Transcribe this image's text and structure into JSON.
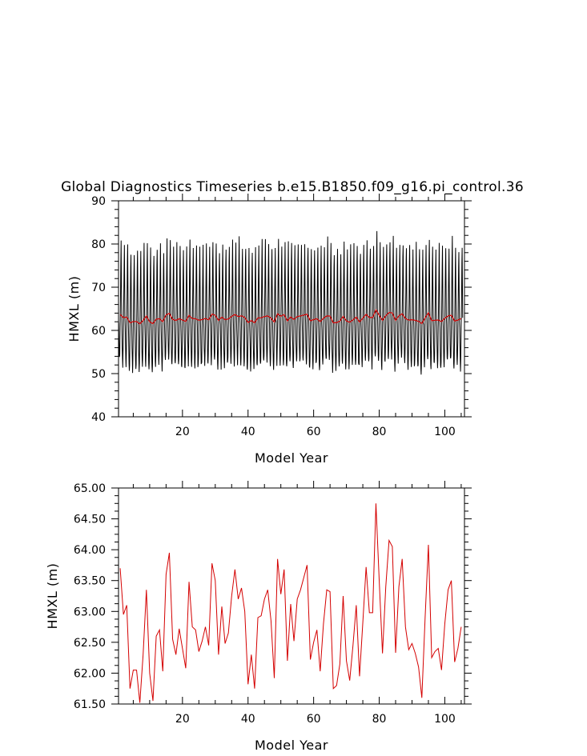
{
  "title": "Global Diagnostics Timeseries b.e15.B1850.f09_g16.pi_control.36",
  "chart_data": [
    {
      "type": "line",
      "panel": "monthly",
      "xlabel": "Model Year",
      "ylabel": "HMXL (m)",
      "xlim": [
        0.5,
        106
      ],
      "ylim": [
        40,
        90
      ],
      "xticks": [
        20,
        40,
        60,
        80,
        100
      ],
      "yticks": [
        40,
        50,
        60,
        70,
        80,
        90
      ],
      "ytick_labels": [
        "40",
        "50",
        "60",
        "70",
        "80",
        "90"
      ],
      "months_per_year": 12,
      "monthly_cycle_offsets": [
        -2.0,
        -6.0,
        -9.5,
        -11.0,
        -9.0,
        -4.5,
        1.0,
        6.0,
        12.5,
        17.0,
        8.0,
        0.5
      ],
      "annual_mean_series_color": "#d40000",
      "monthly_series_color": "#000000"
    },
    {
      "type": "line",
      "panel": "annual",
      "xlabel": "Model Year",
      "ylabel": "HMXL (m)",
      "xlim": [
        0.5,
        106
      ],
      "ylim": [
        61.5,
        65.0
      ],
      "xticks": [
        20,
        40,
        60,
        80,
        100
      ],
      "yticks": [
        61.5,
        62.0,
        62.5,
        63.0,
        63.5,
        64.0,
        64.5,
        65.0
      ],
      "ytick_labels": [
        "61.50",
        "62.00",
        "62.50",
        "63.00",
        "63.50",
        "64.00",
        "64.50",
        "65.00"
      ],
      "series_color": "#d40000",
      "x": [
        1,
        2,
        3,
        4,
        5,
        6,
        7,
        8,
        9,
        10,
        11,
        12,
        13,
        14,
        15,
        16,
        17,
        18,
        19,
        20,
        21,
        22,
        23,
        24,
        25,
        26,
        27,
        28,
        29,
        30,
        31,
        32,
        33,
        34,
        35,
        36,
        37,
        38,
        39,
        40,
        41,
        42,
        43,
        44,
        45,
        46,
        47,
        48,
        49,
        50,
        51,
        52,
        53,
        54,
        55,
        56,
        57,
        58,
        59,
        60,
        61,
        62,
        63,
        64,
        65,
        66,
        67,
        68,
        69,
        70,
        71,
        72,
        73,
        74,
        75,
        76,
        77,
        78,
        79,
        80,
        81,
        82,
        83,
        84,
        85,
        86,
        87,
        88,
        89,
        90,
        91,
        92,
        93,
        94,
        95,
        96,
        97,
        98,
        99,
        100,
        101,
        102,
        103,
        104,
        105
      ],
      "values": [
        63.7,
        62.95,
        63.1,
        61.75,
        62.05,
        62.05,
        61.52,
        62.3,
        63.35,
        62.0,
        61.55,
        62.6,
        62.7,
        62.03,
        63.6,
        63.95,
        62.55,
        62.3,
        62.72,
        62.4,
        62.08,
        63.48,
        62.75,
        62.7,
        62.35,
        62.52,
        62.75,
        62.45,
        63.78,
        63.5,
        62.3,
        63.08,
        62.48,
        62.65,
        63.25,
        63.68,
        63.2,
        63.38,
        63.0,
        61.82,
        62.3,
        61.75,
        62.9,
        62.93,
        63.2,
        63.35,
        62.85,
        61.92,
        63.85,
        63.28,
        63.68,
        62.2,
        63.12,
        62.52,
        63.2,
        63.35,
        63.55,
        63.75,
        62.22,
        62.5,
        62.7,
        62.03,
        62.8,
        63.35,
        63.32,
        61.75,
        61.8,
        62.15,
        63.25,
        62.2,
        61.88,
        62.45,
        63.1,
        61.95,
        62.82,
        63.72,
        62.98,
        62.98,
        64.75,
        63.5,
        62.32,
        63.4,
        64.15,
        64.05,
        62.33,
        63.4,
        63.85,
        62.75,
        62.38,
        62.48,
        62.32,
        62.1,
        61.6,
        62.9,
        64.08,
        62.25,
        62.35,
        62.4,
        62.05,
        62.8,
        63.35,
        63.5,
        62.18,
        62.4,
        62.75
      ]
    }
  ]
}
